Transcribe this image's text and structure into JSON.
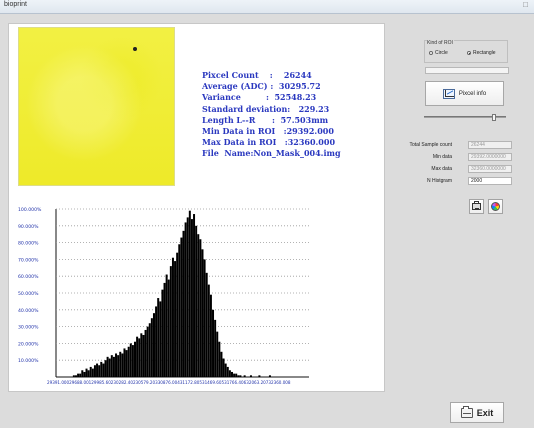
{
  "window": {
    "title": "bioprint"
  },
  "image_panel": {
    "image_name": "yellow-roi-image"
  },
  "stats": [
    "Pixcel Count    :    26244",
    "Average (ADC) :  30295.72",
    "Variance         :  52548.23",
    "Standard deviation:   229.23",
    "Length L--R      :  57.503mm",
    "Min Data in ROI   :29392.000",
    "Max Data in ROI   :32360.000",
    "File  Name:Non_Mask_004.img"
  ],
  "controls": {
    "roi_group_label": "Kind of ROI",
    "roi_options": [
      {
        "label": "Circle",
        "selected": false
      },
      {
        "label": "Rectangle",
        "selected": true
      }
    ],
    "progress_value": 0,
    "pixcel_info_label": "Pixcel info",
    "slider_value": 0.86,
    "total_sample_count_label": "Total Sample count",
    "total_sample_count_value": "26244",
    "min_data_label": "Min data",
    "min_data_value": "29392.0000000",
    "max_data_label": "Max data",
    "max_data_value": "32360.0000000",
    "n_histogram_label": "N Histgram",
    "n_histogram_value": "2000",
    "exit_label": "Exit"
  },
  "icons": {
    "chart": "chart-icon",
    "printer": "printer-icon",
    "palette": "palette-icon",
    "exit": "exit-icon",
    "close": "close-icon"
  },
  "chart_data": {
    "type": "bar",
    "title": "",
    "xlabel": "",
    "ylabel": "",
    "y_ticks": [
      "100.000%",
      "90.000%",
      "80.000%",
      "70.000%",
      "60.000%",
      "50.000%",
      "40.000%",
      "30.000%",
      "20.000%",
      "10.000%"
    ],
    "x_tick_text": "29391.00029688.00129985.60230282.40230579.20330876.00431172.80531469.60531766.40632063.20732360.008",
    "ylim": [
      0,
      100
    ],
    "x_start": 29391.0,
    "x_end": 32360.0,
    "values": [
      0,
      0,
      0,
      0,
      0,
      0,
      0,
      0,
      1,
      1,
      2,
      2,
      4,
      3,
      5,
      4,
      6,
      5,
      7,
      8,
      7,
      9,
      8,
      10,
      12,
      11,
      13,
      12,
      14,
      13,
      15,
      14,
      17,
      16,
      18,
      20,
      19,
      21,
      24,
      23,
      26,
      25,
      28,
      30,
      32,
      35,
      38,
      42,
      47,
      45,
      52,
      56,
      61,
      58,
      66,
      71,
      69,
      74,
      79,
      83,
      87,
      92,
      95,
      99,
      94,
      97,
      90,
      85,
      82,
      76,
      70,
      62,
      55,
      49,
      40,
      34,
      27,
      21,
      15,
      11,
      8,
      6,
      4,
      3,
      2,
      2,
      1,
      1,
      0,
      1,
      0,
      0,
      1,
      0,
      0,
      0,
      1,
      0,
      0,
      0,
      0,
      1,
      0,
      0,
      0,
      0,
      0,
      0,
      0,
      0,
      0,
      0,
      0,
      0,
      0,
      0,
      0,
      0,
      0,
      0
    ]
  }
}
